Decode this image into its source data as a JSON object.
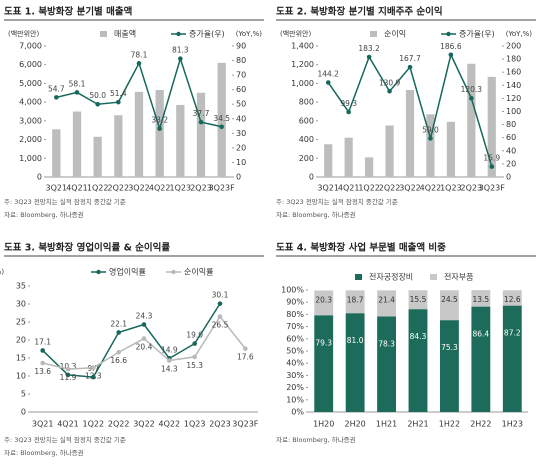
{
  "chart_data": [
    {
      "type": "bar_line",
      "title": "도표 1. 북방화장 분기별 매출액",
      "y_label": "(백만위안)",
      "y2_label": "(YoY,%)",
      "categories": [
        "3Q21",
        "4Q21",
        "1Q22",
        "2Q22",
        "3Q22",
        "4Q22",
        "1Q23",
        "2Q23",
        "3Q23F"
      ],
      "series": [
        {
          "name": "매출액",
          "type": "bar",
          "color": "#bdbdbd",
          "values": [
            2550,
            3500,
            2150,
            3300,
            4550,
            4650,
            3850,
            4500,
            6100
          ]
        },
        {
          "name": "증가율(우)",
          "type": "line",
          "axis": "y2",
          "color": "#17685c",
          "values": [
            54.7,
            58.1,
            50.0,
            51.4,
            78.1,
            33.2,
            81.3,
            37.7,
            34.5
          ],
          "value_labels": [
            "54.7",
            "58.1",
            "50.0",
            "51.4",
            "78.1",
            "33.2",
            "81.3",
            "37.7",
            "34.5"
          ]
        }
      ],
      "ylim": [
        0,
        7000
      ],
      "yticks": [
        0,
        {
          "value": 1000,
          "label": "1,000"
        },
        {
          "value": 2000,
          "label": "2,000"
        },
        {
          "value": 3000,
          "label": "3,000"
        },
        {
          "value": 4000,
          "label": "4,000"
        },
        {
          "value": 5000,
          "label": "5,000"
        },
        {
          "value": 6000,
          "label": "6,000"
        },
        {
          "value": 7000,
          "label": "7,000"
        }
      ],
      "y2lim": [
        0,
        90
      ],
      "y2ticks": [
        0,
        10,
        20,
        30,
        40,
        50,
        60,
        70,
        80,
        90
      ],
      "notes": [
        "주: 3Q23 전망치는 실적 잠정치 중간값 기준",
        "자료: Bloomberg, 하나증권"
      ]
    },
    {
      "type": "bar_line",
      "title": "도표 2. 북방화장 분기별 지배주주 순이익",
      "y_label": "(백만위안)",
      "y2_label": "(YoY,%)",
      "categories": [
        "3Q21",
        "4Q21",
        "1Q22",
        "2Q22",
        "3Q22",
        "4Q22",
        "1Q23",
        "2Q23",
        "3Q23F"
      ],
      "series": [
        {
          "name": "순이익",
          "type": "bar",
          "color": "#bdbdbd",
          "values": [
            350,
            420,
            210,
            550,
            930,
            670,
            590,
            1210,
            1070
          ]
        },
        {
          "name": "증가율(우)",
          "type": "line",
          "axis": "y2",
          "color": "#17685c",
          "values": [
            144.2,
            99.3,
            183.2,
            130.9,
            167.7,
            59.0,
            186.6,
            120.3,
            15.9
          ],
          "value_labels": [
            "144.2",
            "99.3",
            "183.2",
            "130.9",
            "167.7",
            "59.0",
            "186.6",
            "120.3",
            "15.9"
          ]
        }
      ],
      "ylim": [
        0,
        1400
      ],
      "yticks": [
        0,
        200,
        400,
        600,
        800,
        {
          "value": 1000,
          "label": "1,000"
        },
        {
          "value": 1200,
          "label": "1,200"
        },
        {
          "value": 1400,
          "label": "1,400"
        }
      ],
      "y2lim": [
        0,
        200
      ],
      "y2ticks": [
        0,
        20,
        40,
        60,
        80,
        100,
        120,
        140,
        160,
        180,
        200
      ],
      "notes": [
        "주: 3Q23 전망치는 실적 잠정치 중간값 기준",
        "자료: Bloomberg, 하나증권"
      ]
    },
    {
      "type": "line",
      "title": "도표 3. 북방화장 영업이익률 & 순이익률",
      "y_label": "(%)",
      "categories": [
        "3Q21",
        "4Q21",
        "1Q22",
        "2Q22",
        "3Q22",
        "4Q22",
        "1Q23",
        "2Q23",
        "3Q23F"
      ],
      "series": [
        {
          "name": "영업이익률",
          "type": "line",
          "color": "#17685c",
          "values": [
            17.1,
            10.3,
            9.7,
            22.1,
            24.3,
            14.9,
            19.0,
            30.1,
            null
          ],
          "value_labels": [
            "17.1",
            "10.3",
            "9.7",
            "22.1",
            "24.3",
            "14.9",
            "19.0",
            "30.1",
            null
          ]
        },
        {
          "name": "순이익률",
          "type": "line",
          "color": "#b9b9b9",
          "values": [
            13.6,
            11.9,
            12.3,
            16.6,
            20.4,
            14.3,
            15.3,
            26.5,
            17.6
          ],
          "value_labels": [
            "13.6",
            "11.9",
            "12.3",
            "16.6",
            "20.4",
            "14.3",
            "15.3",
            "26.5",
            "17.6"
          ]
        }
      ],
      "ylim": [
        0,
        35
      ],
      "yticks": [
        0,
        5,
        10,
        15,
        20,
        25,
        30,
        35
      ],
      "notes": [
        "주: 3Q23 전망치는 실적 잠정치 중간값 기준",
        "자료: Bloomberg, 하나증권"
      ]
    },
    {
      "type": "stacked_bar",
      "title": "도표 4. 북방화장 사업 부문별 매출액 비중",
      "categories": [
        "1H20",
        "2H20",
        "1H21",
        "2H21",
        "1H22",
        "2H22",
        "1H23"
      ],
      "series": [
        {
          "name": "전자공정장비",
          "color": "#1d6b5a",
          "values": [
            79.3,
            81.0,
            78.3,
            84.3,
            75.3,
            86.4,
            87.2
          ],
          "value_labels": [
            "79.3",
            "81.0",
            "78.3",
            "84.3",
            "75.3",
            "86.4",
            "87.2"
          ]
        },
        {
          "name": "전자부품",
          "color": "#c8c8c8",
          "values": [
            20.3,
            18.7,
            21.4,
            15.5,
            24.5,
            13.5,
            12.6
          ],
          "value_labels": [
            "20.3",
            "18.7",
            "21.4",
            "15.5",
            "24.5",
            "13.5",
            "12.6"
          ]
        }
      ],
      "ylim": [
        0,
        100
      ],
      "yticks": [
        {
          "value": 0,
          "label": "0%"
        },
        {
          "value": 10,
          "label": "10%"
        },
        {
          "value": 20,
          "label": "20%"
        },
        {
          "value": 30,
          "label": "30%"
        },
        {
          "value": 40,
          "label": "40%"
        },
        {
          "value": 50,
          "label": "50%"
        },
        {
          "value": 60,
          "label": "60%"
        },
        {
          "value": 70,
          "label": "70%"
        },
        {
          "value": 80,
          "label": "80%"
        },
        {
          "value": 90,
          "label": "90%"
        },
        {
          "value": 100,
          "label": "100%"
        }
      ],
      "notes": [
        "자료: Bloomberg, 하나증권"
      ]
    }
  ]
}
